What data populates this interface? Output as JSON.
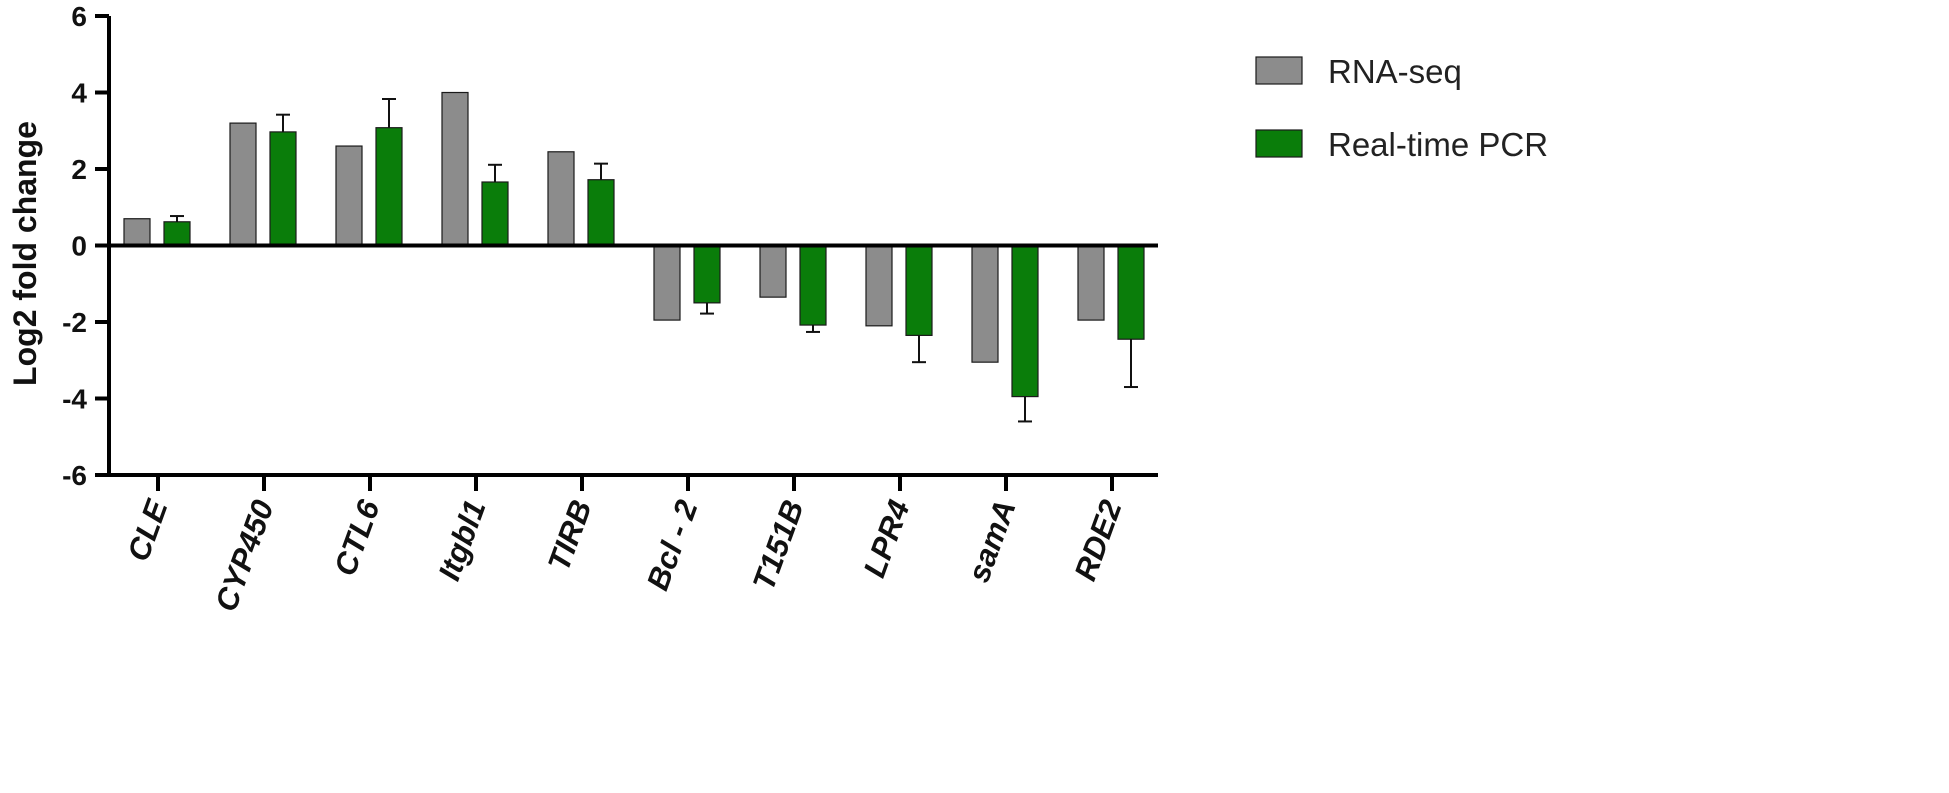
{
  "chart_data": {
    "type": "bar",
    "categories": [
      "CLE",
      "CYP450",
      "CTL6",
      "Itgbl1",
      "TIRB",
      "Bcl - 2",
      "T151B",
      "LPR4",
      "samA",
      "RDE2"
    ],
    "series": [
      {
        "name": "RNA-seq",
        "color": "#8c8c8c",
        "values": [
          0.7,
          3.2,
          2.6,
          4.0,
          2.45,
          -1.95,
          -1.35,
          -2.1,
          -3.05,
          -1.95
        ]
      },
      {
        "name": "Real-time PCR",
        "color": "#0a7d0a",
        "values": [
          0.62,
          2.97,
          3.08,
          1.66,
          1.72,
          -1.5,
          -2.08,
          -2.35,
          -3.95,
          -2.45
        ],
        "errors": [
          0.15,
          0.45,
          0.75,
          0.45,
          0.42,
          0.28,
          0.18,
          0.7,
          0.65,
          1.25
        ]
      }
    ],
    "title": "",
    "xlabel": "",
    "ylabel": "Log2 fold change",
    "ylim": [
      -6,
      6
    ],
    "yticks": [
      "6",
      "4",
      "2",
      "0",
      "-2",
      "-4",
      "-6"
    ],
    "grid": false,
    "legend_position": "top-right"
  }
}
